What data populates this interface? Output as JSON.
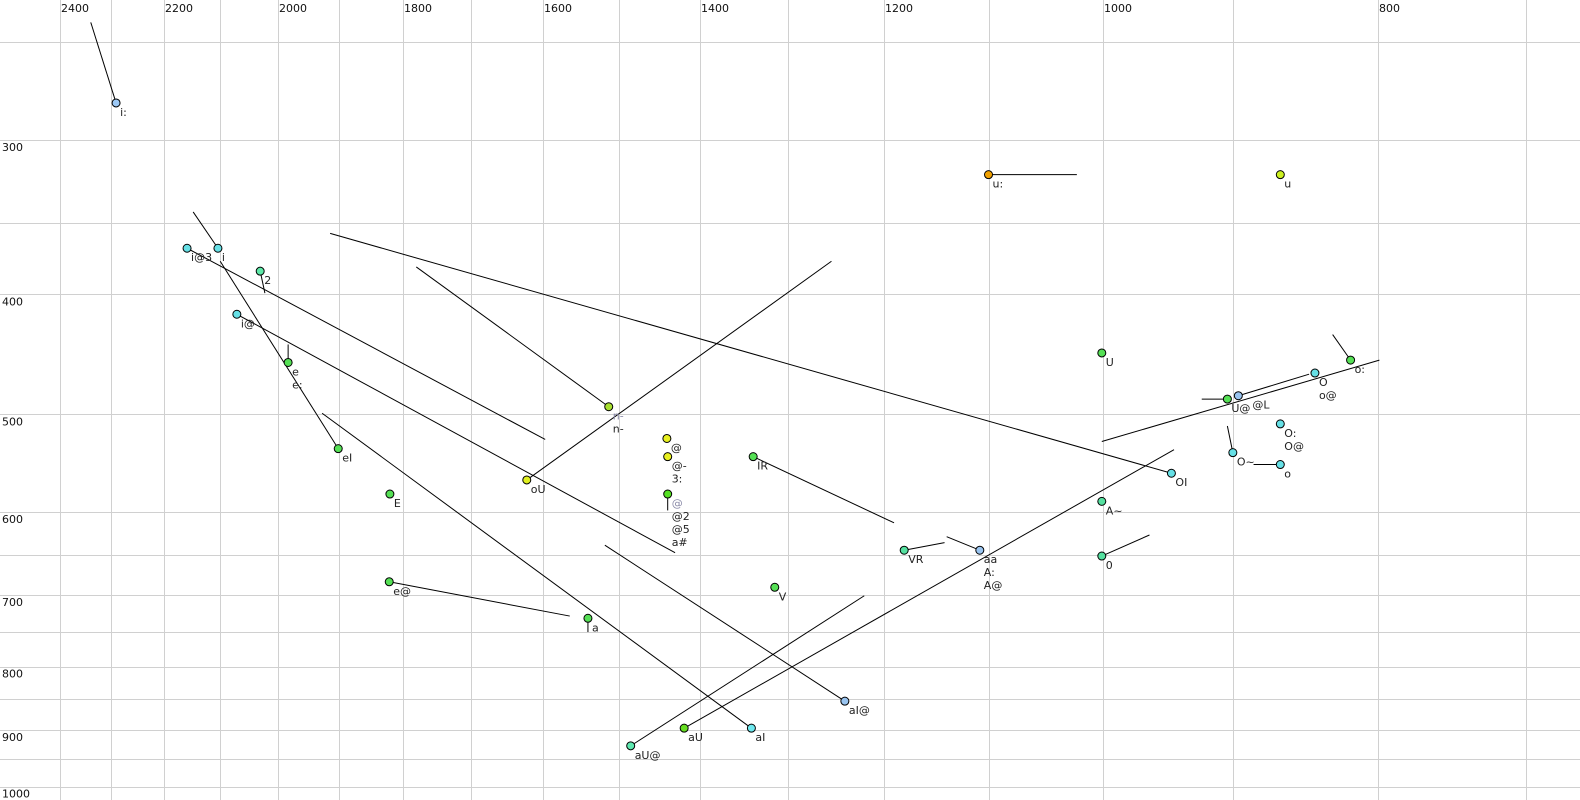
{
  "chart_data": {
    "type": "scatter",
    "title": "",
    "xlabel": "",
    "ylabel": "",
    "x_scale": "log",
    "y_scale": "log",
    "x_reversed": true,
    "x_axis_position": "top",
    "xlim": [
      2460,
      690
    ],
    "ylim": [
      237,
      1010
    ],
    "x_ticks": [
      2400,
      2200,
      2000,
      1800,
      1600,
      1400,
      1200,
      1000,
      800
    ],
    "y_ticks": [
      300,
      400,
      500,
      600,
      700,
      800,
      900,
      1000
    ],
    "grid": true,
    "grid_x": [
      2400,
      2300,
      2200,
      2100,
      2000,
      1900,
      1800,
      1700,
      1600,
      1500,
      1400,
      1300,
      1200,
      1100,
      1000,
      900,
      800,
      700
    ],
    "grid_y": [
      250,
      300,
      350,
      400,
      500,
      600,
      650,
      700,
      750,
      800,
      850,
      900,
      950,
      1000
    ],
    "points": [
      {
        "labels": [
          "i:"
        ],
        "x": 2290,
        "y": 280,
        "color": "#9cc8f5",
        "to": [
          2339,
          241
        ]
      },
      {
        "labels": [
          "i@3"
        ],
        "x": 2158,
        "y": 367,
        "color": "#66e0e6",
        "to": [
          1597,
          524
        ]
      },
      {
        "labels": [
          "i"
        ],
        "x": 2103,
        "y": 367,
        "color": "#66e0e6",
        "to": [
          2147,
          343
        ]
      },
      {
        "labels": [
          "2"
        ],
        "x": 2030,
        "y": 383,
        "color": "#5ee8a8",
        "to": [
          2022,
          399
        ]
      },
      {
        "labels": [
          "i@"
        ],
        "x": 2070,
        "y": 415,
        "color": "#66e0e6",
        "to": [
          1430,
          647
        ]
      },
      {
        "labels": [
          "e",
          "e:"
        ],
        "x": 1983,
        "y": 454,
        "color": "#55e055",
        "to": [
          1983,
          439
        ]
      },
      {
        "labels": [
          "eI"
        ],
        "x": 1901,
        "y": 533,
        "color": "#55e055",
        "to": [
          2099,
          376
        ]
      },
      {
        "labels": [
          "E"
        ],
        "x": 1820,
        "y": 580,
        "color": "#55e055"
      },
      {
        "labels": [
          "e@"
        ],
        "x": 1821,
        "y": 683,
        "color": "#55e055",
        "to": [
          1564,
          728
        ]
      },
      {
        "labels": [
          "a"
        ],
        "x": 1540,
        "y": 731,
        "color": "#55e055",
        "to": [
          1540,
          750
        ]
      },
      {
        "labels": [
          "aI"
        ],
        "x": 1341,
        "y": 897,
        "color": "#6ee8ee",
        "to": [
          1927,
          499
        ]
      },
      {
        "labels": [
          "aU"
        ],
        "x": 1419,
        "y": 897,
        "color": "#66dd22",
        "to": [
          944,
          534
        ]
      },
      {
        "labels": [
          "aU@"
        ],
        "x": 1485,
        "y": 927,
        "color": "#5ee8b0",
        "to": [
          1220,
          701
        ]
      },
      {
        "labels": [
          "aI@"
        ],
        "x": 1240,
        "y": 853,
        "color": "#99c4f0",
        "to": [
          1518,
          638
        ]
      },
      {
        "labels": [
          "oU"
        ],
        "x": 1622,
        "y": 565,
        "color": "#e0f020",
        "to": [
          1254,
          376
        ]
      },
      {
        "labels": [
          "n-"
        ],
        "x": 1513,
        "y": 493,
        "color": "#a8e030",
        "to": [
          1780,
          380
        ],
        "ghost_label": "n-"
      },
      {
        "labels": [
          "@"
        ],
        "x": 1440,
        "y": 523,
        "color": "#e8f020"
      },
      {
        "labels": [
          "@-",
          "3:"
        ],
        "x": 1439,
        "y": 541,
        "color": "#e8f020"
      },
      {
        "labels": [
          "@2",
          "@5",
          "a#"
        ],
        "x": 1439,
        "y": 580,
        "color": "#55e022",
        "to": [
          1439,
          598
        ],
        "ghost_label": "@"
      },
      {
        "labels": [
          "IR"
        ],
        "x": 1339,
        "y": 541,
        "color": "#55e055",
        "to": [
          1190,
          612
        ]
      },
      {
        "labels": [
          "V"
        ],
        "x": 1315,
        "y": 690,
        "color": "#55e055"
      },
      {
        "labels": [
          "VR"
        ],
        "x": 1180,
        "y": 644,
        "color": "#55e0a0",
        "to": [
          1141,
          635
        ]
      },
      {
        "labels": [
          "aa",
          "A:",
          "A@"
        ],
        "x": 1108,
        "y": 644,
        "color": "#99c4f0",
        "to": [
          1139,
          628
        ]
      },
      {
        "labels": [
          "u:"
        ],
        "x": 1100,
        "y": 320,
        "color": "#f0a000",
        "to": [
          1022,
          320
        ]
      },
      {
        "labels": [
          "u"
        ],
        "x": 866,
        "y": 320,
        "color": "#ccf020"
      },
      {
        "labels": [
          "U"
        ],
        "x": 1001,
        "y": 446,
        "color": "#55e055"
      },
      {
        "labels": [
          "A~"
        ],
        "x": 1001,
        "y": 588,
        "color": "#55e0a0"
      },
      {
        "labels": [
          "0"
        ],
        "x": 1001,
        "y": 651,
        "color": "#55e0a0",
        "to": [
          963,
          626
        ]
      },
      {
        "labels": [
          "OI"
        ],
        "x": 946,
        "y": 558,
        "color": "#66e0e6",
        "to": [
          1914,
          357
        ]
      },
      {
        "labels": [
          "U@"
        ],
        "x": 904,
        "y": 486,
        "color": "#55e055",
        "to": [
          923,
          486
        ]
      },
      {
        "labels": [
          "@L"
        ],
        "x": 896,
        "y": 483,
        "color": "#99c4f0",
        "to": [
          846,
          464
        ]
      },
      {
        "labels": [
          "O",
          "o@"
        ],
        "x": 842,
        "y": 463,
        "color": "#66e0e6"
      },
      {
        "labels": [
          "o:"
        ],
        "x": 818,
        "y": 452,
        "color": "#55e055",
        "to": [
          830,
          431
        ]
      },
      {
        "labels": [
          "O:",
          "O@"
        ],
        "x": 866,
        "y": 509,
        "color": "#66e0e6"
      },
      {
        "labels": [
          "O~"
        ],
        "x": 900,
        "y": 537,
        "color": "#66e0e6",
        "to": [
          904,
          511
        ]
      },
      {
        "labels": [
          "o"
        ],
        "x": 866,
        "y": 549,
        "color": "#66e0e6",
        "to": [
          885,
          549
        ]
      }
    ],
    "segments": [
      [
        [
          1001,
          526
        ],
        [
          799,
          452
        ]
      ]
    ]
  }
}
